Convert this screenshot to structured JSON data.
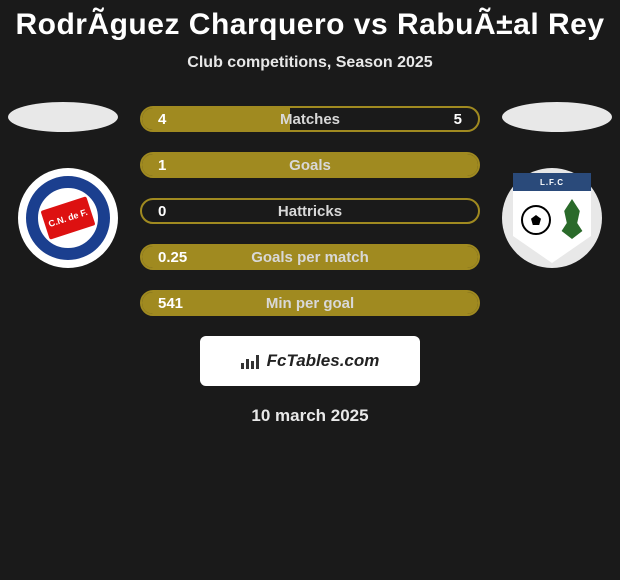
{
  "title": "RodrÃ­guez Charquero vs RabuÃ±al Rey",
  "subtitle": "Club competitions, Season 2025",
  "date": "10 march 2025",
  "logo_text": "FcTables.com",
  "accent_color": "#a08a20",
  "background": "#1a1a1a",
  "bars": [
    {
      "label": "Matches",
      "left": "4",
      "right": "5",
      "fill_pct": 44,
      "key": "matches"
    },
    {
      "label": "Goals",
      "left": "1",
      "right": "",
      "fill_pct": 100,
      "key": "goals"
    },
    {
      "label": "Hattricks",
      "left": "0",
      "right": "",
      "fill_pct": 0,
      "key": "hattricks"
    },
    {
      "label": "Goals per match",
      "left": "0.25",
      "right": "",
      "fill_pct": 100,
      "key": "goals-per-match"
    },
    {
      "label": "Min per goal",
      "left": "541",
      "right": "",
      "fill_pct": 100,
      "key": "min-per-goal"
    }
  ],
  "club1_text": "C.N. de F.",
  "club2_text": "L.F.C"
}
